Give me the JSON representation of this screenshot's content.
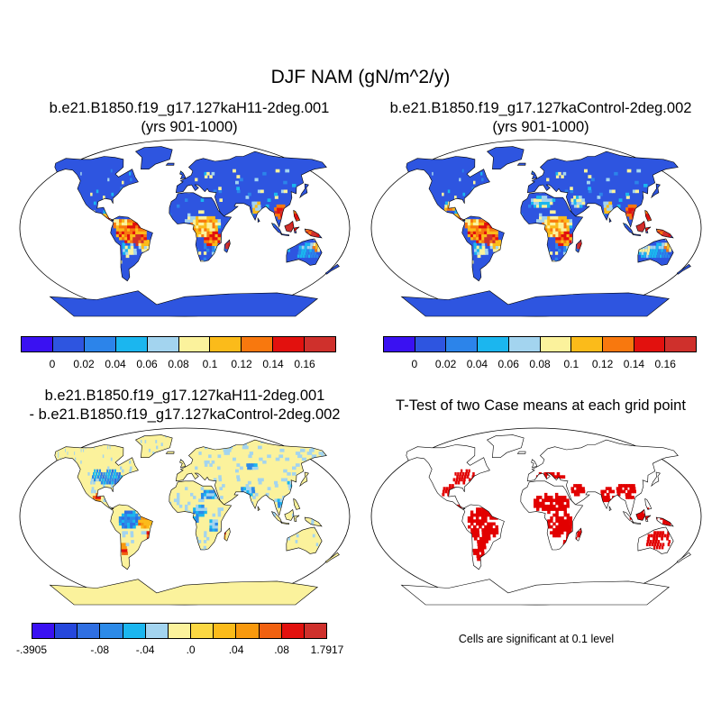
{
  "title": "DJF NAM (gN/m^2/y)",
  "panels": [
    {
      "id": "case1",
      "title_lines": [
        "b.e21.B1850.f19_g17.127kaH11-2deg.001",
        "(yrs 901-1000)"
      ]
    },
    {
      "id": "case2",
      "title_lines": [
        "b.e21.B1850.f19_g17.127kaControl-2deg.002",
        "(yrs 901-1000)"
      ]
    },
    {
      "id": "diff",
      "title_lines": [
        "b.e21.B1850.f19_g17.127kaH11-2deg.001",
        "- b.e21.B1850.f19_g17.127kaControl-2deg.002"
      ]
    },
    {
      "id": "ttest",
      "title_lines": [
        "T-Test of two Case means at each grid point"
      ]
    }
  ],
  "colorbars": {
    "abs": {
      "colors": [
        "#3a11f2",
        "#2e55e0",
        "#2c84ea",
        "#1bb6ef",
        "#a3d4ef",
        "#fbf29c",
        "#fbbb1a",
        "#f8780e",
        "#e2110e",
        "#cf302c"
      ],
      "tick_labels": [
        "0",
        "0.02",
        "0.04",
        "0.06",
        "0.08",
        "0.1",
        "0.12",
        "0.14",
        "0.16"
      ]
    },
    "diff": {
      "colors": [
        "#3a11f2",
        "#2547dc",
        "#2f6fe2",
        "#2c8ae8",
        "#1bb6ef",
        "#a3d4ef",
        "#fbf29c",
        "#fbd843",
        "#fbbb1a",
        "#f8990e",
        "#f16110",
        "#e2110e",
        "#cf302c"
      ],
      "tick_labels": [
        "-.3905",
        "-.08",
        "-.04",
        ".0",
        ".04",
        ".08",
        "1.7917"
      ]
    }
  },
  "significance_note": "Cells are significant at 0.1 level",
  "chart_data": [
    {
      "type": "heatmap",
      "title": "b.e21.B1850.f19_g17.127kaH11-2deg.001 (yrs 901-1000)",
      "variable": "NAM",
      "season": "DJF",
      "units": "gN/m^2/y",
      "projection": "robinson",
      "levels": [
        0,
        0.02,
        0.04,
        0.06,
        0.08,
        0.1,
        0.12,
        0.14,
        0.16
      ],
      "regions": [
        {
          "name": "North America",
          "approx_value": 0.01
        },
        {
          "name": "Eurasia",
          "approx_value": 0.01
        },
        {
          "name": "Greenland",
          "approx_value": 0.0
        },
        {
          "name": "Antarctica",
          "approx_value": 0.0
        },
        {
          "name": "Amazon",
          "approx_value": 0.12
        },
        {
          "name": "Central Africa",
          "approx_value": 0.09
        },
        {
          "name": "Southeast Asia",
          "approx_value": 0.14
        },
        {
          "name": "Australia",
          "approx_value": 0.05
        }
      ]
    },
    {
      "type": "heatmap",
      "title": "b.e21.B1850.f19_g17.127kaControl-2deg.002 (yrs 901-1000)",
      "variable": "NAM",
      "season": "DJF",
      "units": "gN/m^2/y",
      "projection": "robinson",
      "levels": [
        0,
        0.02,
        0.04,
        0.06,
        0.08,
        0.1,
        0.12,
        0.14,
        0.16
      ],
      "regions": [
        {
          "name": "North America",
          "approx_value": 0.02
        },
        {
          "name": "Eurasia",
          "approx_value": 0.02
        },
        {
          "name": "Greenland",
          "approx_value": 0.0
        },
        {
          "name": "Antarctica",
          "approx_value": 0.0
        },
        {
          "name": "Amazon",
          "approx_value": 0.12
        },
        {
          "name": "Central Africa",
          "approx_value": 0.1
        },
        {
          "name": "Southeast Asia",
          "approx_value": 0.15
        },
        {
          "name": "Australia",
          "approx_value": 0.06
        }
      ]
    },
    {
      "type": "heatmap",
      "title": "b.e21.B1850.f19_g17.127kaH11-2deg.001 - b.e21.B1850.f19_g17.127kaControl-2deg.002",
      "projection": "robinson",
      "levels": [
        -0.3905,
        -0.08,
        -0.06,
        -0.04,
        -0.02,
        0.0,
        0.02,
        0.04,
        0.06,
        0.08,
        0.1,
        0.12,
        1.7917
      ],
      "range": [
        -0.3905,
        1.7917
      ],
      "regions": [
        {
          "name": "North America",
          "approx_value": -0.01
        },
        {
          "name": "Eurasia",
          "approx_value": 0.0
        },
        {
          "name": "Amazon",
          "approx_value": 0.01
        },
        {
          "name": "Eastern Brazil",
          "approx_value": 0.06
        },
        {
          "name": "Central Africa",
          "approx_value": 0.02
        },
        {
          "name": "Southeast Asia",
          "approx_value": 0.0
        },
        {
          "name": "Antarctica",
          "approx_value": 0.0
        }
      ]
    },
    {
      "type": "heatmap",
      "title": "T-Test of two Case means at each grid point",
      "projection": "robinson",
      "significance_level": 0.1,
      "significant_color": "#e20000",
      "significant_regions": [
        "Eastern North America",
        "Central America",
        "South America",
        "Africa",
        "Arabia",
        "South Asia",
        "Southeast Asia",
        "Australia",
        "Southern Europe"
      ]
    }
  ]
}
